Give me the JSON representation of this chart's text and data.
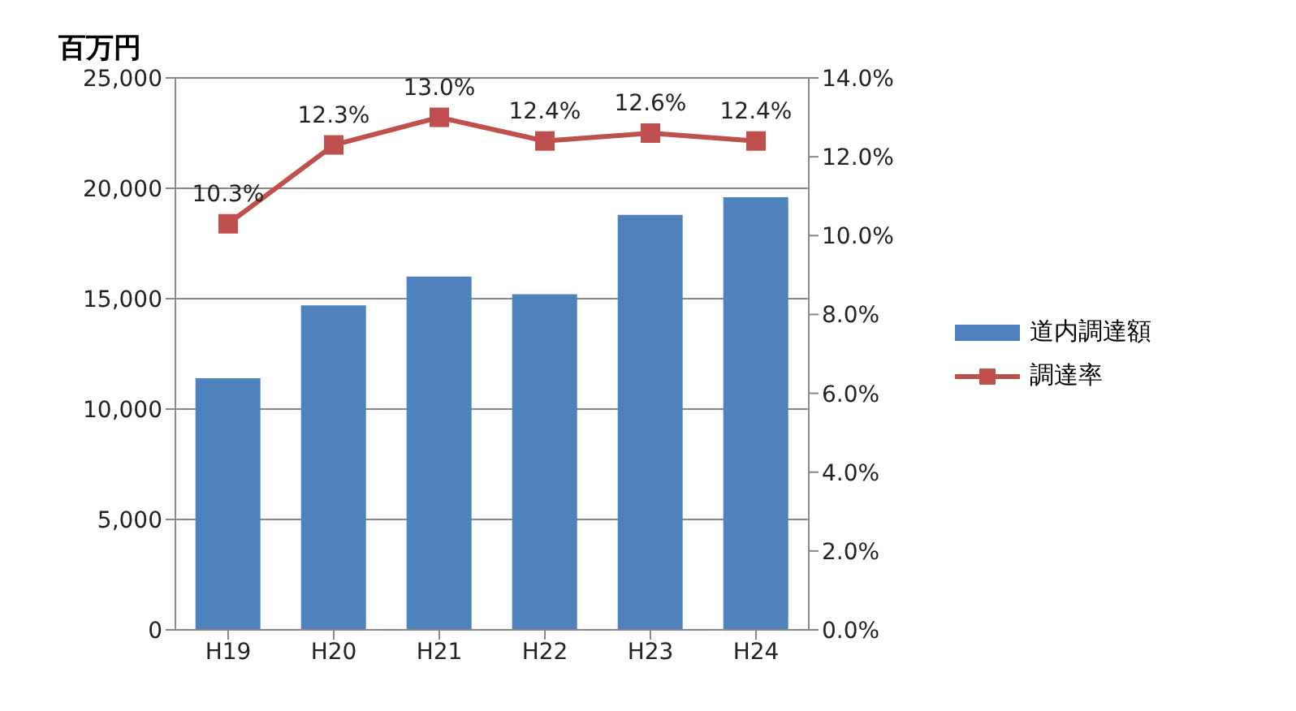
{
  "chart_data": {
    "type": "bar",
    "ylabel": "百万円",
    "categories": [
      "H19",
      "H20",
      "H21",
      "H22",
      "H23",
      "H24"
    ],
    "series": [
      {
        "name": "道内調達額",
        "color": "#4f81bd",
        "values": [
          11400,
          14700,
          16000,
          15200,
          18800,
          19600
        ]
      },
      {
        "name": "調達率",
        "type": "line",
        "axis": "y2",
        "color": "#c0504d",
        "values": [
          10.3,
          12.3,
          13.0,
          12.4,
          12.6,
          12.4
        ],
        "value_labels": [
          "10.3%",
          "12.3%",
          "13.0%",
          "12.4%",
          "12.6%",
          "12.4%"
        ]
      }
    ],
    "ylim": [
      0,
      25000
    ],
    "yticks": [
      {
        "value": 0,
        "label": "0"
      },
      {
        "value": 5000,
        "label": "5,000"
      },
      {
        "value": 10000,
        "label": "10,000"
      },
      {
        "value": 15000,
        "label": "15,000"
      },
      {
        "value": 20000,
        "label": "20,000"
      },
      {
        "value": 25000,
        "label": "25,000"
      }
    ],
    "y2lim": [
      0,
      14
    ],
    "y2ticks": [
      {
        "value": 0,
        "label": "0.0%"
      },
      {
        "value": 2,
        "label": "2.0%"
      },
      {
        "value": 4,
        "label": "4.0%"
      },
      {
        "value": 6,
        "label": "6.0%"
      },
      {
        "value": 8,
        "label": "8.0%"
      },
      {
        "value": 10,
        "label": "10.0%"
      },
      {
        "value": 12,
        "label": "12.0%"
      },
      {
        "value": 14,
        "label": "14.0%"
      }
    ],
    "grid": "y",
    "legend": "right",
    "marker": "square"
  }
}
